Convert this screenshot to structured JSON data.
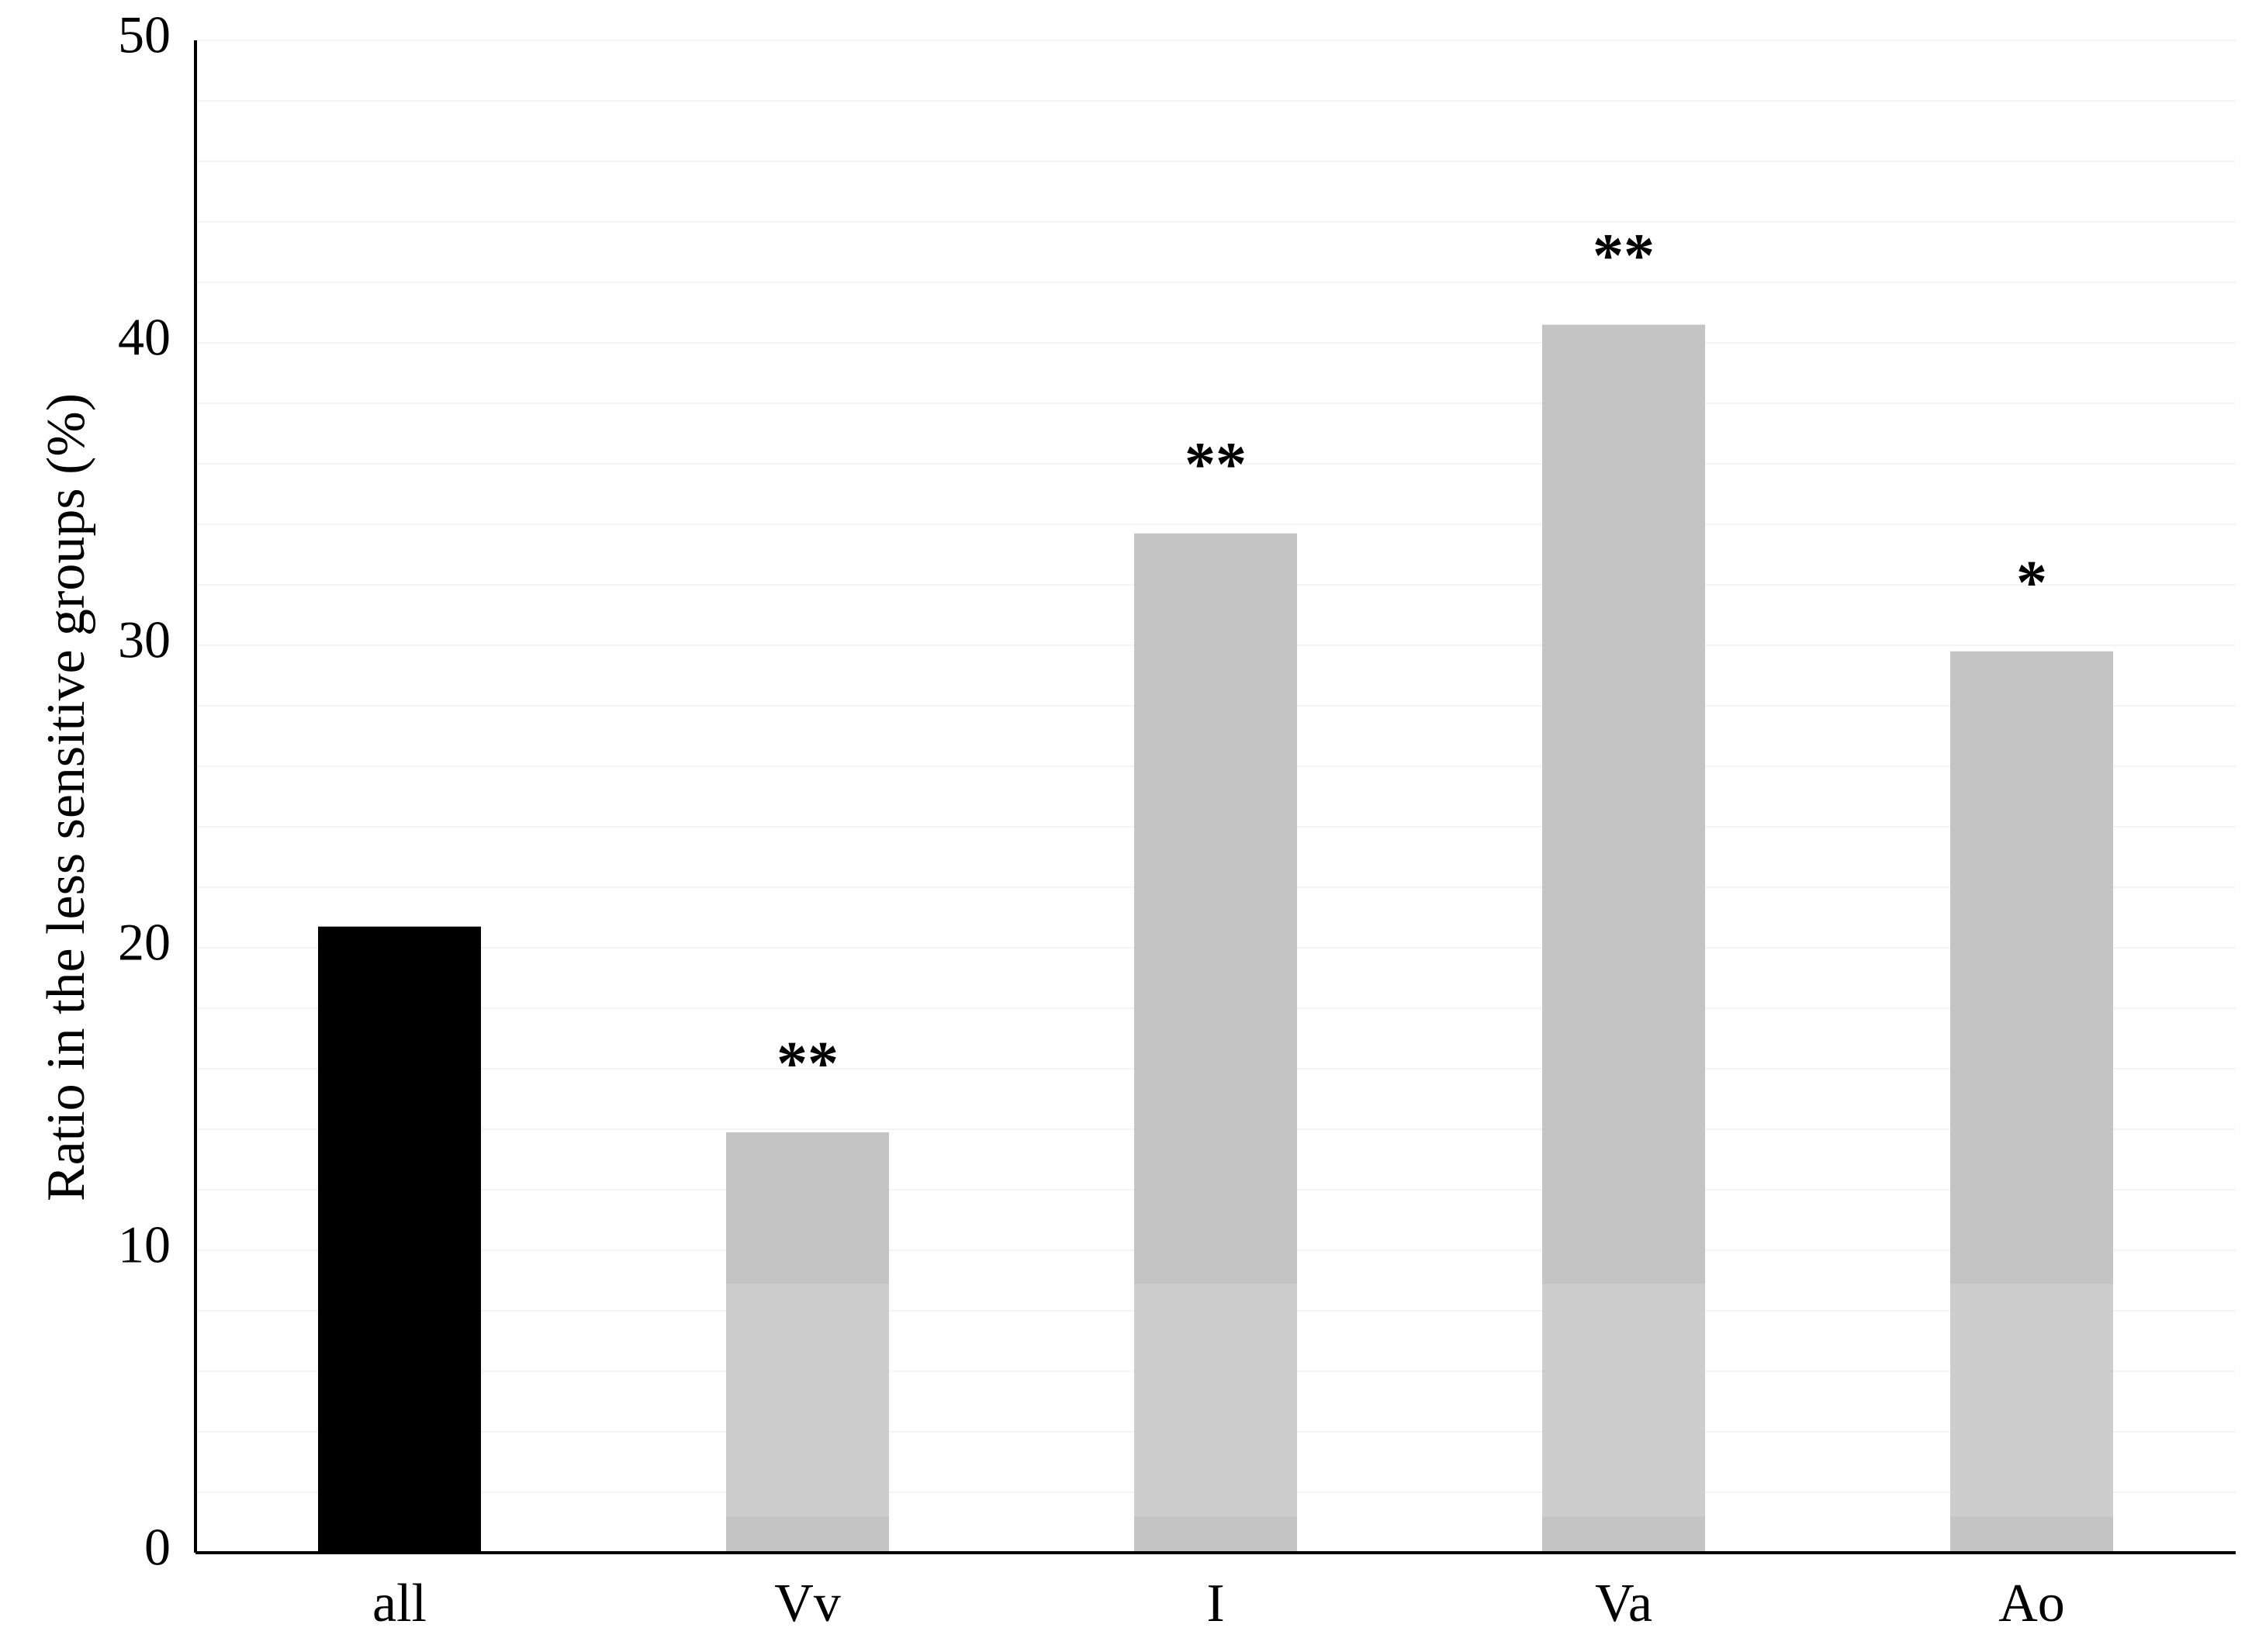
{
  "chart_data": {
    "type": "bar",
    "ylabel": "Ratio in the less sensitive groups (%)",
    "xlabel": "",
    "ylim": [
      0,
      50
    ],
    "yticks": [
      "0",
      "10",
      "20",
      "30",
      "40",
      "50"
    ],
    "categories": [
      "all",
      "Vv",
      "I",
      "Va",
      "Ao"
    ],
    "values": [
      20.7,
      13.9,
      33.7,
      40.6,
      29.8
    ],
    "significance": [
      "",
      "**",
      "**",
      "**",
      "*"
    ],
    "grid": false,
    "legend": "none",
    "colors": {
      "all": "#000000",
      "groups": "#c4c4c4",
      "groups_light": "#cdcdcd",
      "axis": "#000000"
    }
  }
}
